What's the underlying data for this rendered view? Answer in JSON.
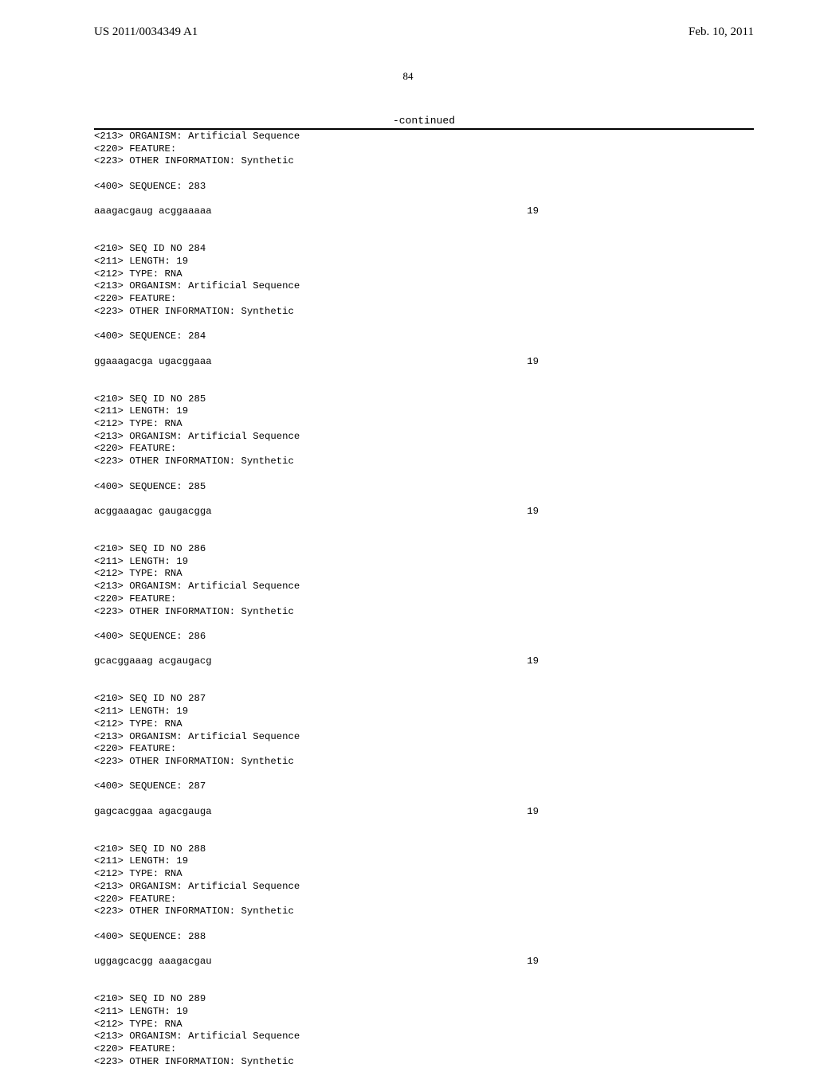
{
  "header": {
    "pub_number": "US 2011/0034349 A1",
    "pub_date": "Feb. 10, 2011",
    "page_number": "84",
    "continued_label": "-continued"
  },
  "blocks": [
    {
      "lead_in": [
        "<213> ORGANISM: Artificial Sequence",
        "<220> FEATURE:",
        "<223> OTHER INFORMATION: Synthetic"
      ],
      "seq_header": "<400> SEQUENCE: 283",
      "sequence": "aaagacgaug acggaaaaa",
      "length": "19"
    },
    {
      "lead_in": [
        "<210> SEQ ID NO 284",
        "<211> LENGTH: 19",
        "<212> TYPE: RNA",
        "<213> ORGANISM: Artificial Sequence",
        "<220> FEATURE:",
        "<223> OTHER INFORMATION: Synthetic"
      ],
      "seq_header": "<400> SEQUENCE: 284",
      "sequence": "ggaaagacga ugacggaaa",
      "length": "19"
    },
    {
      "lead_in": [
        "<210> SEQ ID NO 285",
        "<211> LENGTH: 19",
        "<212> TYPE: RNA",
        "<213> ORGANISM: Artificial Sequence",
        "<220> FEATURE:",
        "<223> OTHER INFORMATION: Synthetic"
      ],
      "seq_header": "<400> SEQUENCE: 285",
      "sequence": "acggaaagac gaugacgga",
      "length": "19"
    },
    {
      "lead_in": [
        "<210> SEQ ID NO 286",
        "<211> LENGTH: 19",
        "<212> TYPE: RNA",
        "<213> ORGANISM: Artificial Sequence",
        "<220> FEATURE:",
        "<223> OTHER INFORMATION: Synthetic"
      ],
      "seq_header": "<400> SEQUENCE: 286",
      "sequence": "gcacggaaag acgaugacg",
      "length": "19"
    },
    {
      "lead_in": [
        "<210> SEQ ID NO 287",
        "<211> LENGTH: 19",
        "<212> TYPE: RNA",
        "<213> ORGANISM: Artificial Sequence",
        "<220> FEATURE:",
        "<223> OTHER INFORMATION: Synthetic"
      ],
      "seq_header": "<400> SEQUENCE: 287",
      "sequence": "gagcacggaa agacgauga",
      "length": "19"
    },
    {
      "lead_in": [
        "<210> SEQ ID NO 288",
        "<211> LENGTH: 19",
        "<212> TYPE: RNA",
        "<213> ORGANISM: Artificial Sequence",
        "<220> FEATURE:",
        "<223> OTHER INFORMATION: Synthetic"
      ],
      "seq_header": "<400> SEQUENCE: 288",
      "sequence": "uggagcacgg aaagacgau",
      "length": "19"
    },
    {
      "lead_in": [
        "<210> SEQ ID NO 289",
        "<211> LENGTH: 19",
        "<212> TYPE: RNA",
        "<213> ORGANISM: Artificial Sequence",
        "<220> FEATURE:",
        "<223> OTHER INFORMATION: Synthetic"
      ],
      "seq_header": null,
      "sequence": null,
      "length": null
    }
  ]
}
